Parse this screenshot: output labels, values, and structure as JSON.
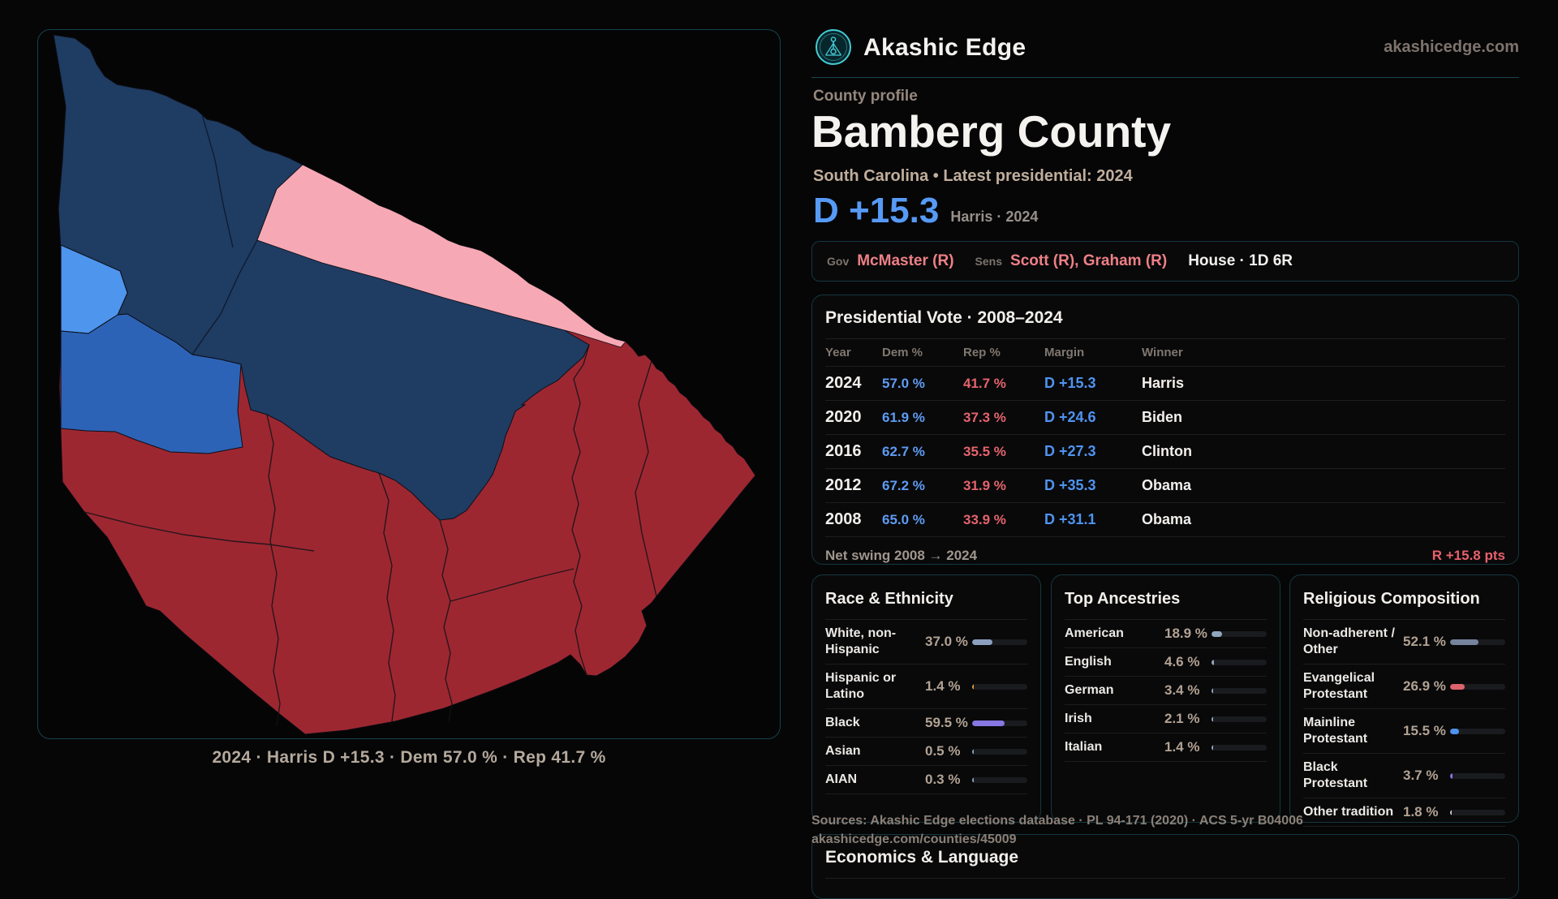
{
  "brand": {
    "name": "Akashic Edge",
    "domain": "akashicedge.com"
  },
  "header": {
    "kicker": "County profile",
    "title": "Bamberg County",
    "subtitle": "South Carolina • Latest presidential: 2024",
    "margin_big": "D +15.3",
    "margin_context": "Harris · 2024"
  },
  "officials": {
    "gov_label": "Gov",
    "gov_value": "McMaster (R)",
    "sens_label": "Sens",
    "sens_value": "Scott (R), Graham (R)",
    "house_value": "House · 1D 6R"
  },
  "elections": {
    "title": "Presidential Vote · 2008–2024",
    "columns": {
      "year": "Year",
      "dem": "Dem %",
      "rep": "Rep %",
      "margin": "Margin",
      "winner": "Winner"
    },
    "rows": [
      {
        "year": "2024",
        "dem": "57.0 %",
        "rep": "41.7 %",
        "margin": "D +15.3",
        "winner": "Harris"
      },
      {
        "year": "2020",
        "dem": "61.9 %",
        "rep": "37.3 %",
        "margin": "D +24.6",
        "winner": "Biden"
      },
      {
        "year": "2016",
        "dem": "62.7 %",
        "rep": "35.5 %",
        "margin": "D +27.3",
        "winner": "Clinton"
      },
      {
        "year": "2012",
        "dem": "67.2 %",
        "rep": "31.9 %",
        "margin": "D +35.3",
        "winner": "Obama"
      },
      {
        "year": "2008",
        "dem": "65.0 %",
        "rep": "33.9 %",
        "margin": "D +31.1",
        "winner": "Obama"
      }
    ],
    "net_swing_label": "Net swing 2008 → 2024",
    "net_swing_value": "R +15.8 pts"
  },
  "demographics": [
    {
      "title": "Race & Ethnicity",
      "rows": [
        {
          "label": "White, non-Hispanic",
          "value": "37.0 %",
          "pct": 37.0,
          "color": "#8ba0bf"
        },
        {
          "label": "Hispanic or Latino",
          "value": "1.4 %",
          "pct": 1.4,
          "color": "#e09a4a"
        },
        {
          "label": "Black",
          "value": "59.5 %",
          "pct": 59.5,
          "color": "#8677e2"
        },
        {
          "label": "Asian",
          "value": "0.5 %",
          "pct": 0.5,
          "color": "#8ba0bf"
        },
        {
          "label": "AIAN",
          "value": "0.3 %",
          "pct": 0.3,
          "color": "#8ba0bf"
        }
      ]
    },
    {
      "title": "Top Ancestries",
      "rows": [
        {
          "label": "American",
          "value": "18.9 %",
          "pct": 18.9,
          "color": "#91a6bd"
        },
        {
          "label": "English",
          "value": "4.6 %",
          "pct": 4.6,
          "color": "#91a6bd"
        },
        {
          "label": "German",
          "value": "3.4 %",
          "pct": 3.4,
          "color": "#91a6bd"
        },
        {
          "label": "Irish",
          "value": "2.1 %",
          "pct": 2.1,
          "color": "#91a6bd"
        },
        {
          "label": "Italian",
          "value": "1.4 %",
          "pct": 1.4,
          "color": "#91a6bd"
        }
      ]
    },
    {
      "title": "Religious Composition",
      "rows": [
        {
          "label": "Non-adherent / Other",
          "value": "52.1 %",
          "pct": 52.1,
          "color": "#76839d"
        },
        {
          "label": "Evangelical Protestant",
          "value": "26.9 %",
          "pct": 26.9,
          "color": "#dd626c"
        },
        {
          "label": "Mainline Protestant",
          "value": "15.5 %",
          "pct": 15.5,
          "color": "#4e93ee"
        },
        {
          "label": "Black Protestant",
          "value": "3.7 %",
          "pct": 3.7,
          "color": "#8677e2"
        },
        {
          "label": "Other tradition",
          "value": "1.8 %",
          "pct": 1.8,
          "color": "#c3c7cd"
        }
      ]
    }
  ],
  "economics": {
    "title": "Economics & Language"
  },
  "sources": {
    "line1": "Sources: Akashic Edge elections database · PL 94-171 (2020) · ACS 5-yr B04006",
    "line2": "akashicedge.com/counties/45009"
  },
  "map": {
    "caption": "2024 · Harris D +15.3 · Dem 57.0 % · Rep 41.7 %",
    "palette": {
      "red": "#9d2731",
      "navy": "#1f3c63",
      "pink": "#f6a9b4",
      "light_blue": "#4e95ee",
      "medium_blue": "#2d63b6",
      "accent_teal": "#45cbd5"
    }
  }
}
